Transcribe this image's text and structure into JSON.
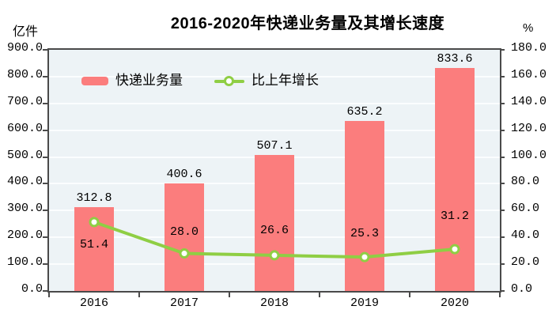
{
  "chart_data": {
    "type": "bar",
    "subtype": "bar-line-combo",
    "title": "2016-2020年快递业务量及其增长速度",
    "categories": [
      "2016",
      "2017",
      "2018",
      "2019",
      "2020"
    ],
    "series": [
      {
        "name": "快递业务量",
        "type": "bar",
        "axis": "left",
        "values": [
          312.8,
          400.6,
          507.1,
          635.2,
          833.6
        ],
        "labels": [
          "312.8",
          "400.6",
          "507.1",
          "635.2",
          "833.6"
        ]
      },
      {
        "name": "比上年增长",
        "type": "line",
        "axis": "right",
        "values": [
          51.4,
          28.0,
          26.6,
          25.3,
          31.2
        ],
        "labels": [
          "51.4",
          "28.0",
          "26.6",
          "25.3",
          "31.2"
        ]
      }
    ],
    "left_axis": {
      "unit": "亿件",
      "min": 0,
      "max": 900,
      "step": 100,
      "tick_labels": [
        "900.0",
        "800.0",
        "700.0",
        "600.0",
        "500.0",
        "400.0",
        "300.0",
        "200.0",
        "100.0",
        "0.0"
      ]
    },
    "right_axis": {
      "unit": "%",
      "min": 0,
      "max": 180,
      "step": 20,
      "tick_labels": [
        "180.0",
        "160.0",
        "140.0",
        "120.0",
        "100.0",
        "80.0",
        "60.0",
        "40.0",
        "20.0",
        "0.0"
      ]
    },
    "legend": {
      "position": "inside-top-left",
      "items": [
        "快递业务量",
        "比上年增长"
      ]
    },
    "grid": true,
    "colors": {
      "bar": "#FB7D7D",
      "line": "#8FCE44",
      "marker_fill": "#FFFFFF",
      "plot_bg": "#EDF3F6",
      "gridline": "#FBFDFE",
      "axis": "#4A4A4A",
      "text": "#000000"
    }
  }
}
